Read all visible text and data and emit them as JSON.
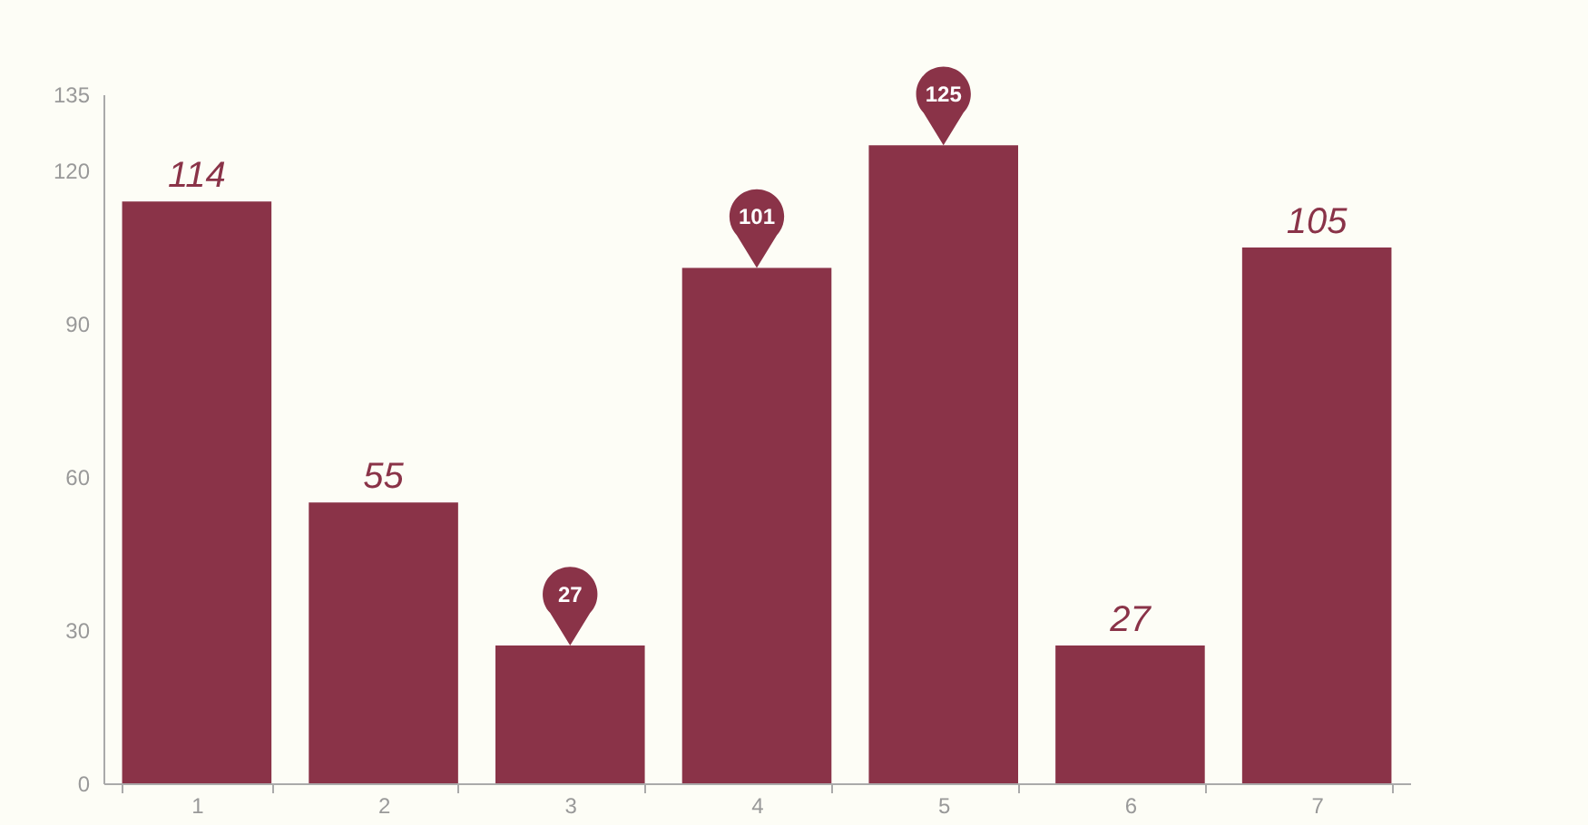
{
  "chart_data": {
    "type": "bar",
    "categories": [
      "1",
      "2",
      "3",
      "4",
      "5",
      "6",
      "7"
    ],
    "values": [
      114,
      55,
      27,
      101,
      125,
      27,
      105
    ],
    "color": "#8a3348",
    "value_labels": [
      "114",
      "55",
      null,
      null,
      null,
      "27",
      "105"
    ],
    "ylim": [
      0,
      135
    ],
    "yticks": [
      0,
      30,
      60,
      90,
      120,
      135
    ],
    "grid": false,
    "annotations": [
      {
        "text": "125",
        "x": "5",
        "y": 125
      },
      {
        "text": "101",
        "x": "4",
        "y": 101
      },
      {
        "text": "27",
        "x": "3",
        "y": 27
      }
    ]
  }
}
